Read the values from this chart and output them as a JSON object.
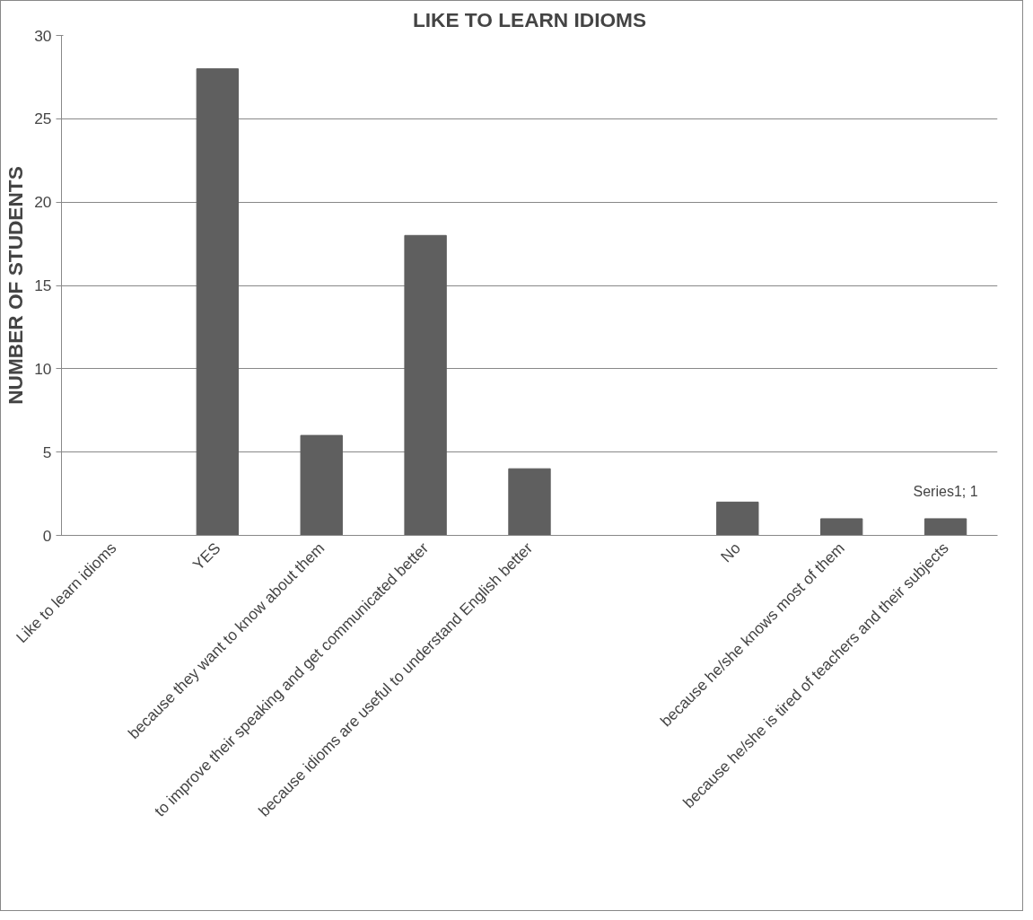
{
  "chart_data": {
    "type": "bar",
    "title": "LIKE TO LEARN IDIOMS",
    "ylabel": "NUMBER OF STUDENTS",
    "categories": [
      "Like to learn idioms",
      "YES",
      "because they want to know about them",
      "to improve their speaking and get communicated better",
      "because idioms are useful to understand English better",
      null,
      "No",
      "because he/she knows most of them",
      "because he/she is tired of teachers and their subjects"
    ],
    "values": [
      null,
      28,
      6,
      18,
      4,
      null,
      2,
      1,
      1
    ],
    "color": "#5f5f5f",
    "ylim": [
      0,
      30
    ],
    "yticks": [
      0,
      5,
      10,
      15,
      20,
      25,
      30
    ],
    "grid": "y",
    "annotations": [
      {
        "text": "Series1; 1",
        "x": "because he/she is tired of teachers and their subjects",
        "y": 1
      }
    ]
  }
}
